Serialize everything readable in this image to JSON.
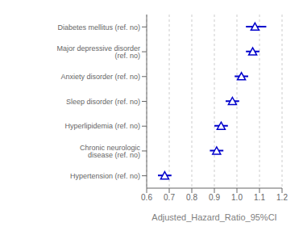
{
  "chart_data": {
    "type": "forest",
    "xlabel": "Adjusted_Hazard_Ratio_95%CI",
    "categories": [
      "Diabetes mellitus (ref. no)",
      "Major depressive disorder (ref. no)",
      "Anxiety disorder (ref. no)",
      "Sleep disorder (ref. no)",
      "Hyperlipidemia (ref. no)",
      "Chronic neurologic disease (ref. no)",
      "Hypertension (ref. no)"
    ],
    "values": [
      1.08,
      1.07,
      1.02,
      0.98,
      0.93,
      0.91,
      0.68
    ],
    "ci_lower": [
      1.04,
      1.04,
      0.99,
      0.95,
      0.9,
      0.88,
      0.65
    ],
    "ci_upper": [
      1.13,
      1.1,
      1.05,
      1.01,
      0.96,
      0.94,
      0.71
    ],
    "xlim": [
      0.6,
      1.2
    ],
    "xticks": [
      0.6,
      0.7,
      0.8,
      0.9,
      {
        "value": 1,
        "label": "1.0"
      },
      1.1,
      1.2
    ],
    "grid": true,
    "marker": "triangle",
    "color": "#0000cc"
  }
}
